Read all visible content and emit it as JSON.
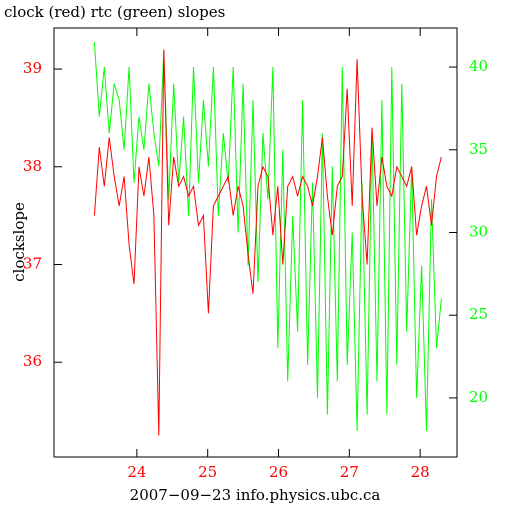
{
  "chart_data": {
    "type": "line",
    "title": "clock (red) rtc (green) slopes",
    "y_label": "clockslope",
    "x_label": "2007−09−23 info.physics.ubc.ca",
    "x": [
      23.4,
      23.47,
      23.54,
      23.61,
      23.68,
      23.75,
      23.82,
      23.89,
      23.96,
      24.03,
      24.1,
      24.17,
      24.24,
      24.31,
      24.38,
      24.45,
      24.52,
      24.59,
      24.66,
      24.73,
      24.8,
      24.87,
      24.94,
      25.01,
      25.08,
      25.15,
      25.22,
      25.29,
      25.36,
      25.43,
      25.5,
      25.57,
      25.64,
      25.71,
      25.78,
      25.85,
      25.92,
      25.99,
      26.06,
      26.13,
      26.2,
      26.27,
      26.34,
      26.41,
      26.48,
      26.55,
      26.62,
      26.69,
      26.76,
      26.83,
      26.9,
      26.97,
      27.04,
      27.11,
      27.18,
      27.25,
      27.32,
      27.39,
      27.46,
      27.53,
      27.6,
      27.67,
      27.74,
      27.81,
      27.88,
      27.95,
      28.02,
      28.09,
      28.16,
      28.23,
      28.3
    ],
    "series": [
      {
        "name": "clock",
        "color": "#ff0000",
        "values": [
          37.5,
          38.2,
          37.8,
          38.3,
          37.9,
          37.6,
          37.9,
          37.2,
          36.8,
          38.0,
          37.7,
          38.1,
          37.5,
          35.25,
          39.2,
          37.4,
          38.1,
          37.8,
          37.9,
          37.7,
          37.8,
          37.4,
          37.5,
          36.5,
          37.6,
          37.7,
          37.8,
          37.9,
          37.5,
          37.8,
          37.6,
          37.1,
          36.7,
          37.8,
          38.0,
          37.9,
          37.3,
          37.8,
          37.0,
          37.8,
          37.9,
          37.7,
          37.9,
          37.8,
          37.6,
          37.9,
          38.3,
          37.7,
          37.3,
          37.8,
          37.9,
          38.8,
          37.6,
          39.1,
          37.7,
          37.0,
          38.4,
          37.6,
          38.1,
          37.8,
          37.7,
          38.0,
          37.9,
          37.8,
          38.0,
          37.3,
          37.6,
          37.8,
          37.4,
          37.9,
          38.1
        ]
      },
      {
        "name": "rtc",
        "color": "#00ff00",
        "axis": "y2",
        "values": [
          41.5,
          37,
          40,
          36,
          39,
          38,
          35,
          40,
          33,
          37,
          35,
          39,
          36,
          34,
          41,
          32,
          39,
          33,
          37,
          31,
          40,
          33,
          38,
          34,
          40,
          31,
          36,
          33,
          40,
          30,
          39,
          28,
          38,
          27,
          36,
          32,
          40,
          23,
          35,
          21,
          31,
          24,
          38,
          22,
          33,
          20,
          36,
          19,
          34,
          21,
          40,
          22,
          30,
          18,
          33,
          19,
          36,
          21,
          38,
          19,
          40,
          22,
          39,
          24,
          34,
          20,
          28,
          18,
          32,
          23,
          26
        ]
      }
    ],
    "xlim": [
      22.83,
      28.52
    ],
    "xticks": [
      24,
      25,
      26,
      27,
      28
    ],
    "ylim": [
      35.03,
      39.42
    ],
    "yticks": [
      36,
      37,
      38,
      39
    ],
    "y2lim": [
      16.43,
      42.36
    ],
    "y2ticks": [
      20,
      25,
      30,
      35,
      40
    ]
  }
}
